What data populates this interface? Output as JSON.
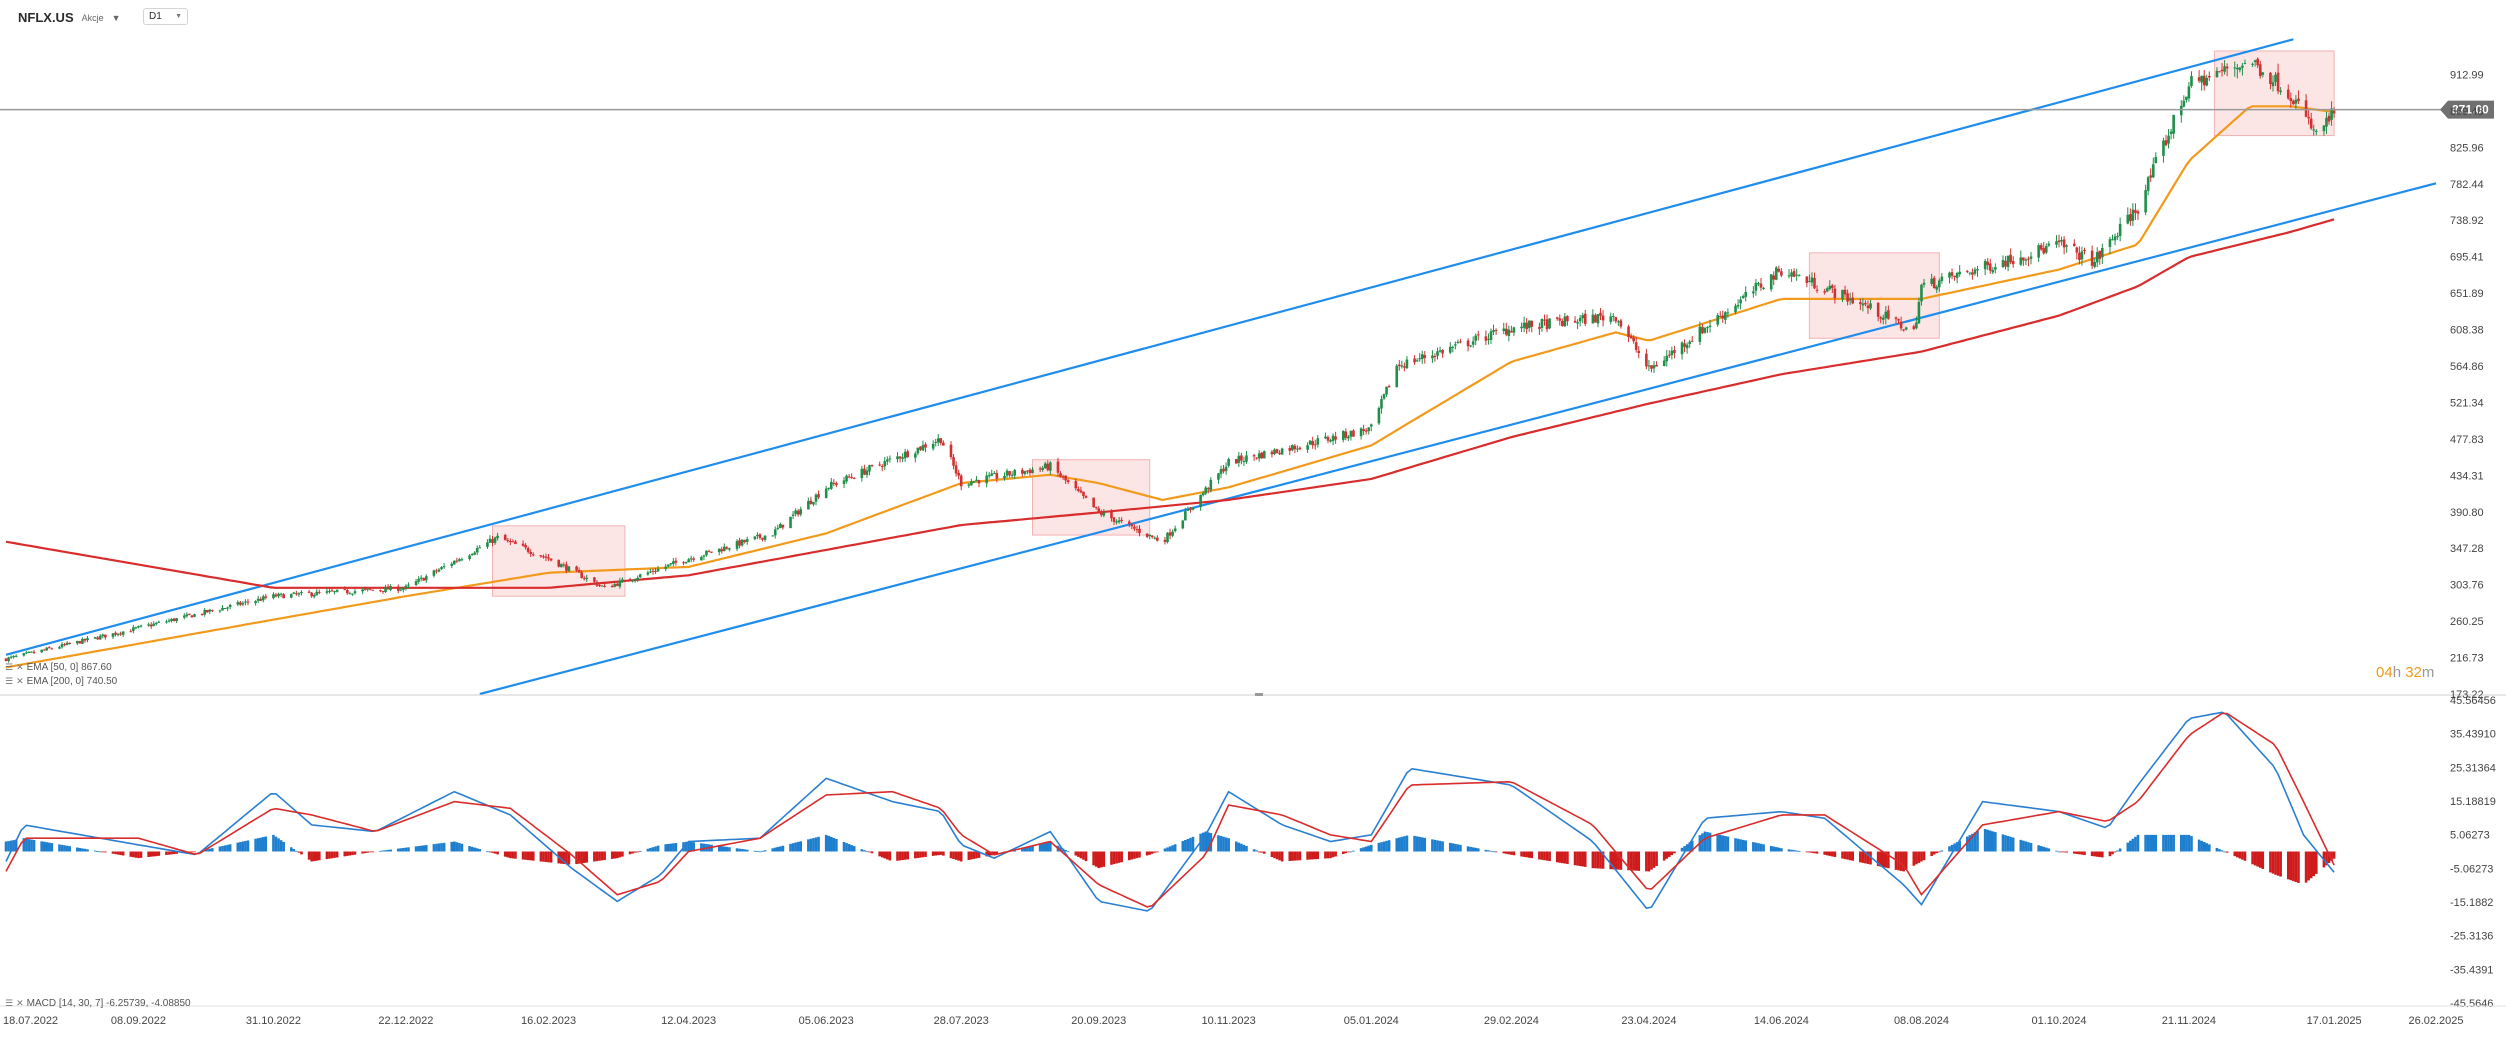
{
  "header": {
    "symbol": "NFLX.US",
    "symbol_type": "Akcje",
    "timeframe": "D1"
  },
  "indicators": {
    "ema50_label": "EMA [50, 0] 867.60",
    "ema200_label": "EMA [200, 0] 740.50",
    "macd_label": "MACD [14, 30, 7] -6.25739, -4.08850"
  },
  "timer": {
    "hours": "04",
    "hours_unit": "h",
    "minutes": "32",
    "minutes_unit": "m"
  },
  "colors": {
    "channel": "#1f8ded",
    "ema50": "#f19a1b",
    "ema200": "#d92c2c",
    "bull_candle": "#1f8f4a",
    "bear_candle": "#d23131",
    "highlight_fill": "#fbe0e0",
    "highlight_stroke": "#f2b3b3",
    "macd_line": "#2a7fd1",
    "signal_line": "#d92c2c",
    "hist_pos": "#1f7fcf",
    "hist_neg": "#cf1b1b",
    "price_tag": "#707070"
  },
  "chart_data": [
    {
      "type": "candlestick",
      "title": "NFLX.US",
      "current_price": "871.00",
      "y_ticks": [
        "912.99",
        "869.48",
        "825.96",
        "782.44",
        "738.92",
        "695.41",
        "651.89",
        "608.38",
        "564.86",
        "521.34",
        "477.83",
        "434.31",
        "390.80",
        "347.28",
        "303.76",
        "260.25",
        "216.73",
        "173.22"
      ],
      "ylim": [
        173.22,
        956.5
      ],
      "x_ticks": [
        "18.07.2022",
        "08.09.2022",
        "31.10.2022",
        "22.12.2022",
        "16.02.2023",
        "12.04.2023",
        "05.06.2023",
        "28.07.2023",
        "20.09.2023",
        "10.11.2023",
        "05.01.2024",
        "29.02.2024",
        "23.04.2024",
        "14.06.2024",
        "08.08.2024",
        "01.10.2024",
        "21.11.2024",
        "17.01.2025",
        "26.02.2025"
      ],
      "price_path": [
        [
          "18.07.2022",
          215
        ],
        [
          "31.10.2022",
          290
        ],
        [
          "22.12.2022",
          300
        ],
        [
          "27.01.2023",
          360
        ],
        [
          "16.02.2023",
          335
        ],
        [
          "10.03.2023",
          300
        ],
        [
          "12.04.2023",
          335
        ],
        [
          "15.05.2023",
          365
        ],
        [
          "05.06.2023",
          420
        ],
        [
          "20.07.2023",
          478
        ],
        [
          "28.07.2023",
          425
        ],
        [
          "01.09.2023",
          445
        ],
        [
          "20.09.2023",
          390
        ],
        [
          "15.10.2023",
          355
        ],
        [
          "10.11.2023",
          450
        ],
        [
          "05.01.2024",
          490
        ],
        [
          "15.01.2024",
          565
        ],
        [
          "29.02.2024",
          610
        ],
        [
          "10.04.2024",
          625
        ],
        [
          "23.04.2024",
          560
        ],
        [
          "14.06.2024",
          680
        ],
        [
          "15.07.2024",
          640
        ],
        [
          "05.08.2024",
          605
        ],
        [
          "08.08.2024",
          660
        ],
        [
          "01.10.2024",
          710
        ],
        [
          "15.10.2024",
          690
        ],
        [
          "01.11.2024",
          755
        ],
        [
          "21.11.2024",
          900
        ],
        [
          "15.12.2024",
          930
        ],
        [
          "31.12.2024",
          890
        ],
        [
          "10.01.2025",
          840
        ],
        [
          "17.01.2025",
          868
        ]
      ],
      "series": [
        {
          "name": "EMA [50, 0]",
          "path": [
            [
              "18.07.2022",
              205
            ],
            [
              "31.10.2022",
              262
            ],
            [
              "22.12.2022",
              290
            ],
            [
              "16.02.2023",
              318
            ],
            [
              "12.04.2023",
              325
            ],
            [
              "05.06.2023",
              365
            ],
            [
              "28.07.2023",
              425
            ],
            [
              "01.09.2023",
              435
            ],
            [
              "20.09.2023",
              425
            ],
            [
              "15.10.2023",
              405
            ],
            [
              "10.11.2023",
              420
            ],
            [
              "05.01.2024",
              470
            ],
            [
              "29.02.2024",
              570
            ],
            [
              "10.04.2024",
              605
            ],
            [
              "23.04.2024",
              595
            ],
            [
              "14.06.2024",
              645
            ],
            [
              "08.08.2024",
              645
            ],
            [
              "01.10.2024",
              680
            ],
            [
              "01.11.2024",
              710
            ],
            [
              "21.11.2024",
              810
            ],
            [
              "15.12.2024",
              875
            ],
            [
              "31.12.2024",
              875
            ],
            [
              "17.01.2025",
              868
            ]
          ]
        },
        {
          "name": "EMA [200, 0]",
          "path": [
            [
              "18.07.2022",
              355
            ],
            [
              "31.10.2022",
              300
            ],
            [
              "16.02.2023",
              300
            ],
            [
              "12.04.2023",
              315
            ],
            [
              "28.07.2023",
              375
            ],
            [
              "20.09.2023",
              390
            ],
            [
              "10.11.2023",
              405
            ],
            [
              "05.01.2024",
              430
            ],
            [
              "29.02.2024",
              480
            ],
            [
              "23.04.2024",
              520
            ],
            [
              "14.06.2024",
              555
            ],
            [
              "08.08.2024",
              582
            ],
            [
              "01.10.2024",
              625
            ],
            [
              "01.11.2024",
              660
            ],
            [
              "21.11.2024",
              695
            ],
            [
              "31.12.2024",
              725
            ],
            [
              "17.01.2025",
              740
            ]
          ]
        }
      ],
      "channel": {
        "upper": [
          [
            "18.07.2022",
            220
          ],
          [
            "01.01.2025",
            955
          ]
        ],
        "lower": [
          [
            "20.01.2023",
            173.22
          ],
          [
            "26.02.2025",
            783
          ]
        ]
      },
      "highlight_zones": [
        {
          "from": "25.01.2023",
          "to": "18.03.2023",
          "high": 374,
          "low": 290
        },
        {
          "from": "25.08.2023",
          "to": "10.10.2023",
          "high": 453,
          "low": 363
        },
        {
          "from": "25.06.2024",
          "to": "15.08.2024",
          "high": 700,
          "low": 598
        },
        {
          "from": "01.12.2024",
          "to": "17.01.2025",
          "high": 941,
          "low": 840
        }
      ]
    },
    {
      "type": "macd",
      "title": "MACD [14, 30, 7]",
      "y_ticks": [
        "45.56456",
        "35.43910",
        "25.31364",
        "15.18819",
        "5.06273",
        "-5.06273",
        "-15.1882",
        "-25.3136",
        "-35.4391",
        "-45.5646"
      ],
      "ylim": [
        -45.5646,
        45.56456
      ],
      "macd_path": [
        [
          "18.07.2022",
          -3
        ],
        [
          "25.07.2022",
          8
        ],
        [
          "08.09.2022",
          2
        ],
        [
          "01.10.2022",
          -1
        ],
        [
          "31.10.2022",
          18
        ],
        [
          "15.11.2022",
          8
        ],
        [
          "10.12.2022",
          6
        ],
        [
          "10.01.2023",
          18
        ],
        [
          "01.02.2023",
          11
        ],
        [
          "25.02.2023",
          -5
        ],
        [
          "15.03.2023",
          -15
        ],
        [
          "01.04.2023",
          -7
        ],
        [
          "12.04.2023",
          3
        ],
        [
          "10.05.2023",
          4
        ],
        [
          "05.06.2023",
          22
        ],
        [
          "01.07.2023",
          15
        ],
        [
          "20.07.2023",
          12
        ],
        [
          "28.07.2023",
          2
        ],
        [
          "10.08.2023",
          -2
        ],
        [
          "01.09.2023",
          6
        ],
        [
          "20.09.2023",
          -15
        ],
        [
          "10.10.2023",
          -18
        ],
        [
          "01.11.2023",
          5
        ],
        [
          "10.11.2023",
          18
        ],
        [
          "01.12.2023",
          8
        ],
        [
          "20.12.2023",
          3
        ],
        [
          "05.01.2024",
          5
        ],
        [
          "20.01.2024",
          25
        ],
        [
          "29.02.2024",
          20
        ],
        [
          "01.04.2024",
          3
        ],
        [
          "23.04.2024",
          -18
        ],
        [
          "15.05.2024",
          10
        ],
        [
          "14.06.2024",
          12
        ],
        [
          "01.07.2024",
          10
        ],
        [
          "01.08.2024",
          -10
        ],
        [
          "08.08.2024",
          -16
        ],
        [
          "01.09.2024",
          15
        ],
        [
          "01.10.2024",
          12
        ],
        [
          "20.10.2024",
          7
        ],
        [
          "01.11.2024",
          20
        ],
        [
          "21.11.2024",
          40
        ],
        [
          "05.12.2024",
          42
        ],
        [
          "25.12.2024",
          25
        ],
        [
          "05.01.2025",
          5
        ],
        [
          "17.01.2025",
          -6.26
        ]
      ],
      "signal_path": [
        [
          "18.07.2022",
          -6
        ],
        [
          "25.07.2022",
          4
        ],
        [
          "08.09.2022",
          4
        ],
        [
          "01.10.2022",
          -1
        ],
        [
          "31.10.2022",
          13
        ],
        [
          "15.11.2022",
          11
        ],
        [
          "10.12.2022",
          6
        ],
        [
          "10.01.2023",
          15
        ],
        [
          "01.02.2023",
          13
        ],
        [
          "25.02.2023",
          -1
        ],
        [
          "15.03.2023",
          -13
        ],
        [
          "01.04.2023",
          -9
        ],
        [
          "12.04.2023",
          0
        ],
        [
          "10.05.2023",
          4
        ],
        [
          "05.06.2023",
          17
        ],
        [
          "01.07.2023",
          18
        ],
        [
          "20.07.2023",
          13
        ],
        [
          "28.07.2023",
          5
        ],
        [
          "10.08.2023",
          -1
        ],
        [
          "01.09.2023",
          3
        ],
        [
          "20.09.2023",
          -10
        ],
        [
          "10.10.2023",
          -17
        ],
        [
          "01.11.2023",
          -1
        ],
        [
          "10.11.2023",
          14
        ],
        [
          "01.12.2023",
          11
        ],
        [
          "20.12.2023",
          5
        ],
        [
          "05.01.2024",
          3
        ],
        [
          "20.01.2024",
          20
        ],
        [
          "29.02.2024",
          21
        ],
        [
          "01.04.2024",
          8
        ],
        [
          "23.04.2024",
          -12
        ],
        [
          "15.05.2024",
          4
        ],
        [
          "14.06.2024",
          11
        ],
        [
          "01.07.2024",
          11
        ],
        [
          "01.08.2024",
          -4
        ],
        [
          "08.08.2024",
          -13
        ],
        [
          "01.09.2024",
          8
        ],
        [
          "01.10.2024",
          12
        ],
        [
          "20.10.2024",
          9
        ],
        [
          "01.11.2024",
          15
        ],
        [
          "21.11.2024",
          35
        ],
        [
          "05.12.2024",
          42
        ],
        [
          "25.12.2024",
          32
        ],
        [
          "05.01.2025",
          15
        ],
        [
          "17.01.2025",
          -4.09
        ]
      ]
    }
  ]
}
